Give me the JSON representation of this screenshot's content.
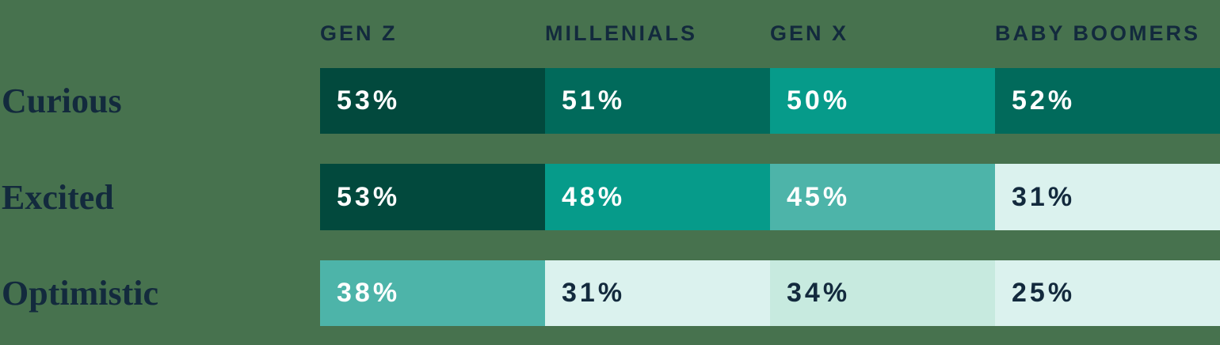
{
  "background_color": "#47724E",
  "heading_text_color": "#132A3D",
  "chart_data": {
    "type": "heatmap",
    "columns": [
      "GEN Z",
      "MILLENIALS",
      "GEN X",
      "BABY BOOMERS"
    ],
    "rows": [
      "Curious",
      "Excited",
      "Optimistic"
    ],
    "unit": "%",
    "values": [
      [
        53,
        51,
        50,
        52
      ],
      [
        53,
        48,
        45,
        31
      ],
      [
        38,
        31,
        34,
        25
      ]
    ],
    "cell_labels": [
      [
        "53%",
        "51%",
        "50%",
        "52%"
      ],
      [
        "53%",
        "48%",
        "45%",
        "31%"
      ],
      [
        "38%",
        "31%",
        "34%",
        "25%"
      ]
    ],
    "cell_colors": [
      [
        "#02493D",
        "#016A5B",
        "#069B8A",
        "#016A5B"
      ],
      [
        "#02493D",
        "#069B8A",
        "#4DB4A9",
        "#DBF2EE"
      ],
      [
        "#4DB4A9",
        "#DBF2EE",
        "#C7EADF",
        "#DBF2EE"
      ]
    ],
    "cell_text_colors": [
      [
        "#FFFFFF",
        "#FFFFFF",
        "#FFFFFF",
        "#FFFFFF"
      ],
      [
        "#FFFFFF",
        "#FFFFFF",
        "#FFFFFF",
        "#132A3D"
      ],
      [
        "#FFFFFF",
        "#132A3D",
        "#132A3D",
        "#132A3D"
      ]
    ],
    "legend": "none",
    "grid": false
  }
}
